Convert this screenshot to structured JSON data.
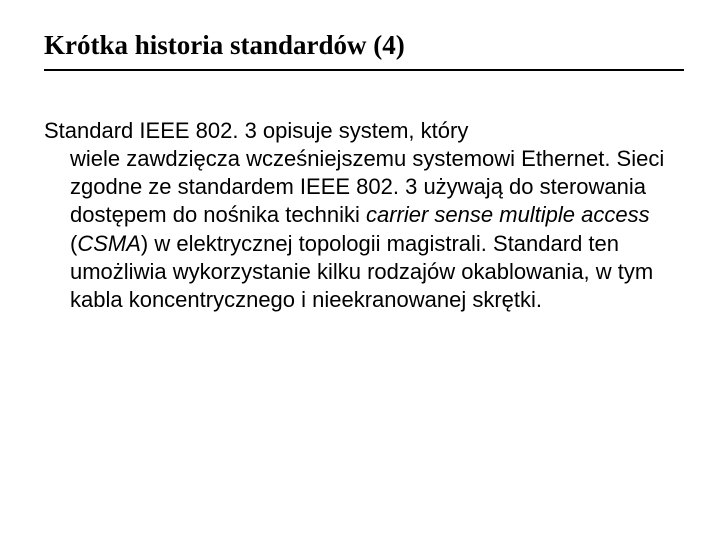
{
  "title": "Krótka historia standardów (4)",
  "accent_color": "#9aa86a",
  "hr_color": "#000000",
  "body": {
    "line1": "Standard IEEE 802. 3 opisuje system, który",
    "indent_pre": "wiele zawdzięcza wcześniejszemu systemowi Ethernet.\nSieci zgodne ze standardem IEEE 802. 3 używają do sterowania dostępem do nośnika techniki ",
    "italic1": "carrier sense multiple access",
    "mid1": " (",
    "italic2": "CSMA",
    "indent_post": ") w elektrycznej topologii magistrali. Standard ten umożliwia wykorzystanie kilku rodzajów okablowania, w tym kabla koncentrycznego i nieekranowanej skrętki."
  },
  "font_sizes": {
    "title": 27,
    "body": 22
  },
  "colors": {
    "text": "#000000",
    "background": "#ffffff"
  }
}
